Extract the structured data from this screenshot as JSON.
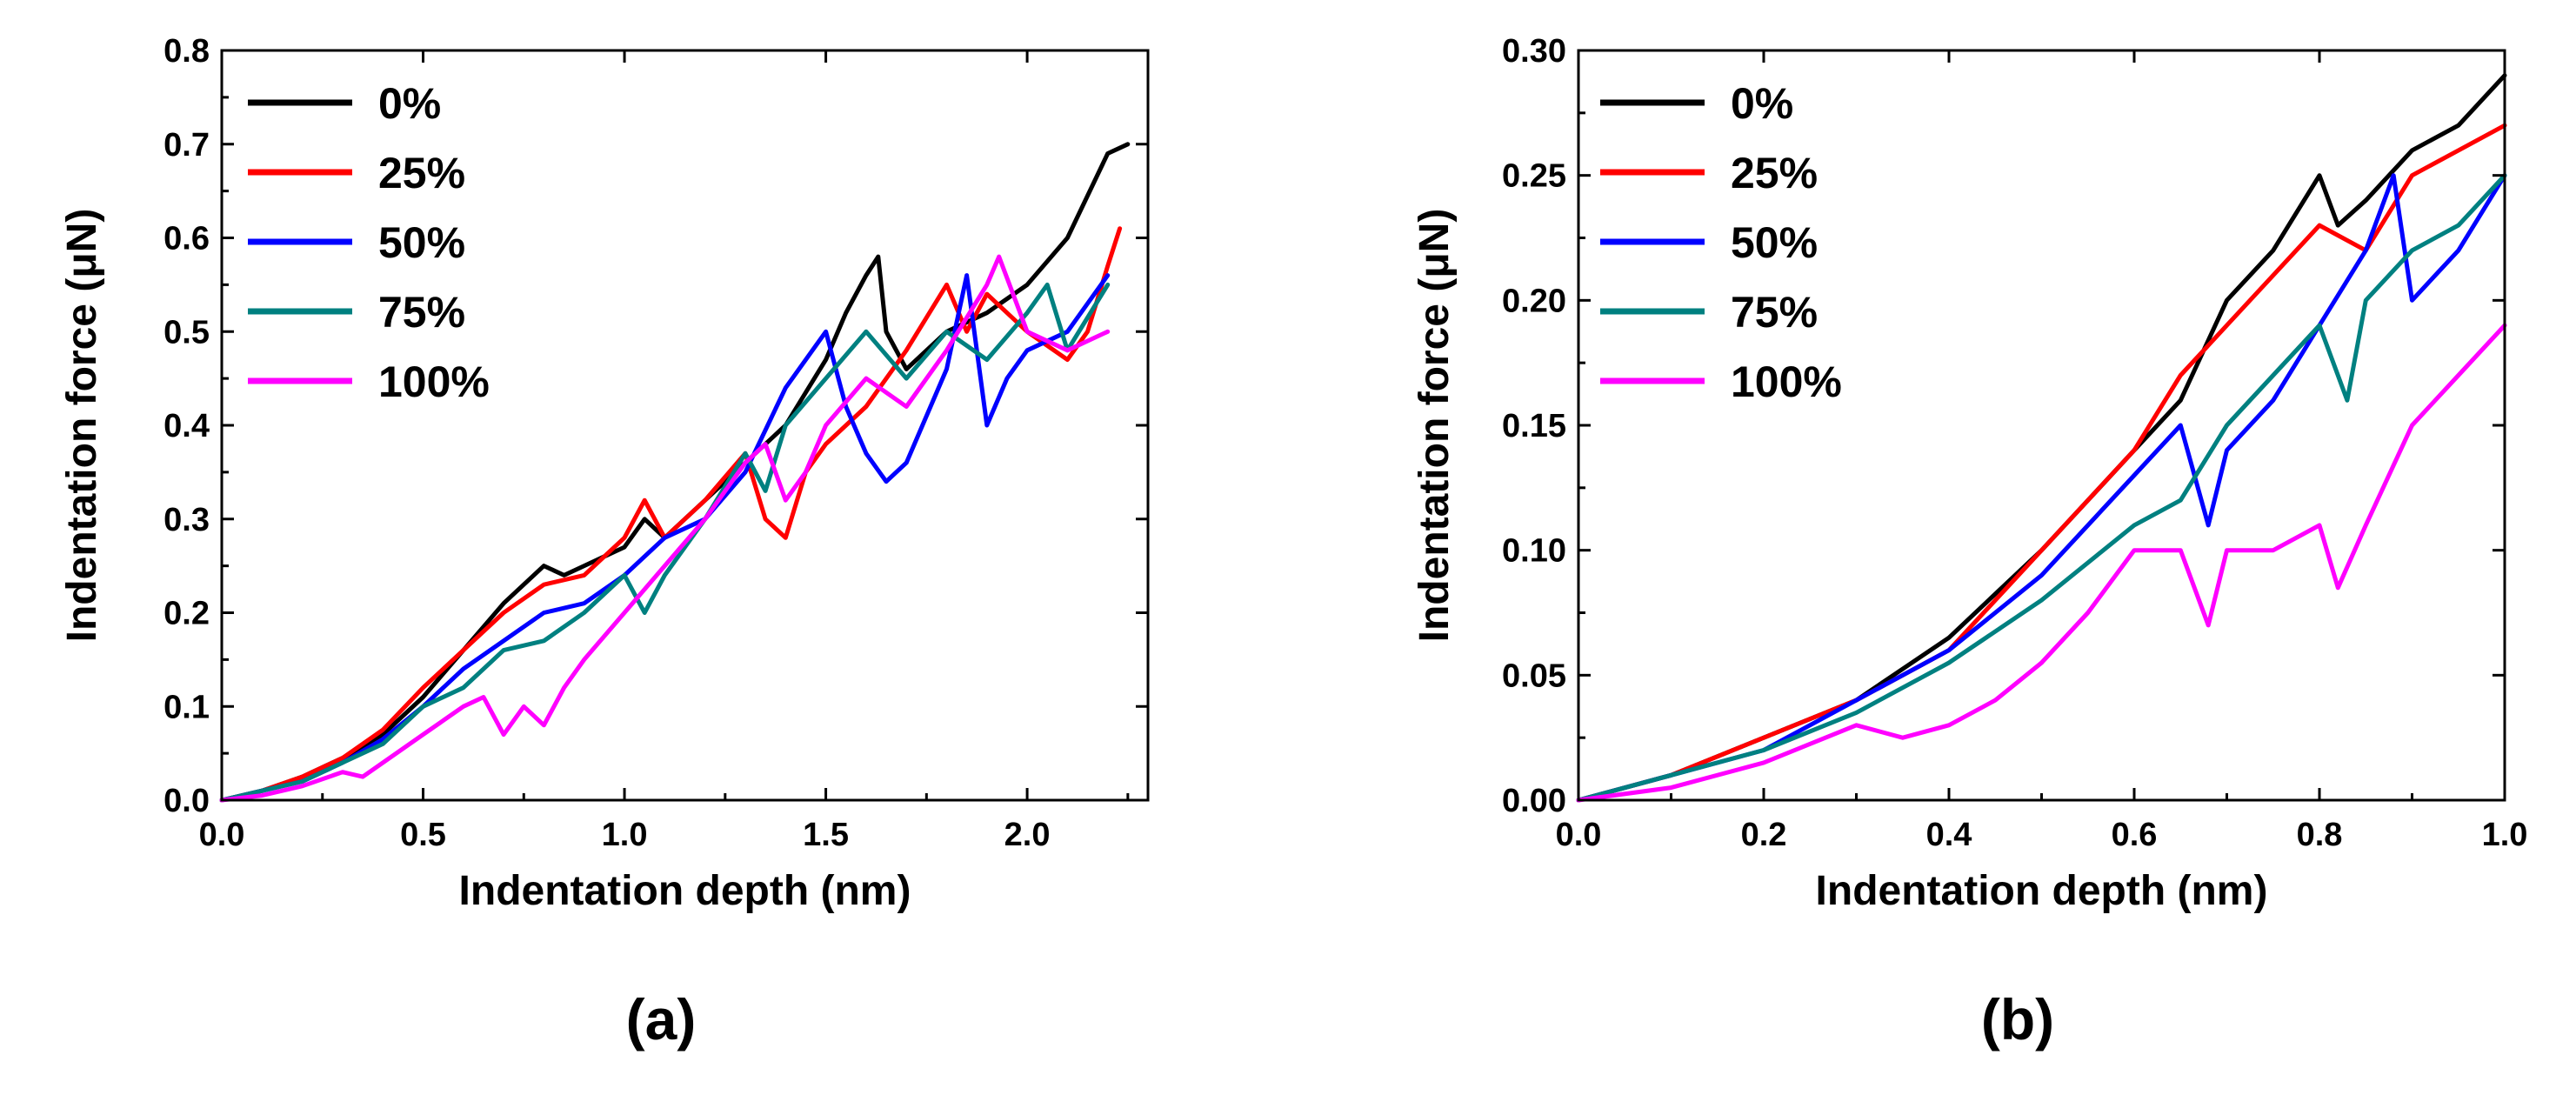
{
  "colors": {
    "0%": "#000000",
    "25%": "#ff0000",
    "50%": "#0000ff",
    "75%": "#008080",
    "100%": "#ff00ff",
    "axis": "#000000",
    "background": "#ffffff"
  },
  "chart_data": [
    {
      "id": "a",
      "panel_label": "(a)",
      "type": "line",
      "xlabel": "Indentation depth (nm)",
      "ylabel": "Indentation force (μN)",
      "xlim": [
        0,
        2.3
      ],
      "ylim": [
        0,
        0.8
      ],
      "xticks": [
        0.0,
        0.5,
        1.0,
        1.5,
        2.0
      ],
      "xtick_labels": [
        "0.0",
        "0.5",
        "1.0",
        "1.5",
        "2.0"
      ],
      "yticks": [
        0.0,
        0.1,
        0.2,
        0.3,
        0.4,
        0.5,
        0.6,
        0.7,
        0.8
      ],
      "ytick_labels": [
        "0.0",
        "0.1",
        "0.2",
        "0.3",
        "0.4",
        "0.5",
        "0.6",
        "0.7",
        "0.8"
      ],
      "grid": false,
      "legend_position": "top-left",
      "series": [
        {
          "name": "0%",
          "x": [
            0,
            0.1,
            0.2,
            0.3,
            0.4,
            0.5,
            0.6,
            0.7,
            0.8,
            0.85,
            0.9,
            0.95,
            1.0,
            1.05,
            1.1,
            1.2,
            1.3,
            1.4,
            1.5,
            1.55,
            1.6,
            1.63,
            1.65,
            1.7,
            1.8,
            1.9,
            2.0,
            2.1,
            2.2,
            2.25
          ],
          "y": [
            0,
            0.01,
            0.025,
            0.045,
            0.07,
            0.11,
            0.16,
            0.21,
            0.25,
            0.24,
            0.25,
            0.26,
            0.27,
            0.3,
            0.28,
            0.32,
            0.36,
            0.4,
            0.47,
            0.52,
            0.56,
            0.58,
            0.5,
            0.46,
            0.5,
            0.52,
            0.55,
            0.6,
            0.69,
            0.7
          ]
        },
        {
          "name": "25%",
          "x": [
            0,
            0.1,
            0.2,
            0.3,
            0.4,
            0.5,
            0.6,
            0.7,
            0.8,
            0.9,
            1.0,
            1.05,
            1.1,
            1.2,
            1.3,
            1.35,
            1.4,
            1.45,
            1.5,
            1.6,
            1.7,
            1.8,
            1.85,
            1.9,
            2.0,
            2.1,
            2.15,
            2.2,
            2.23
          ],
          "y": [
            0,
            0.01,
            0.025,
            0.045,
            0.075,
            0.12,
            0.16,
            0.2,
            0.23,
            0.24,
            0.28,
            0.32,
            0.28,
            0.32,
            0.37,
            0.3,
            0.28,
            0.35,
            0.38,
            0.42,
            0.48,
            0.55,
            0.5,
            0.54,
            0.5,
            0.47,
            0.5,
            0.57,
            0.61
          ]
        },
        {
          "name": "50%",
          "x": [
            0,
            0.1,
            0.2,
            0.3,
            0.4,
            0.5,
            0.6,
            0.7,
            0.8,
            0.9,
            1.0,
            1.1,
            1.2,
            1.3,
            1.4,
            1.5,
            1.55,
            1.6,
            1.65,
            1.7,
            1.8,
            1.85,
            1.9,
            1.95,
            2.0,
            2.1,
            2.2
          ],
          "y": [
            0,
            0.01,
            0.02,
            0.04,
            0.065,
            0.1,
            0.14,
            0.17,
            0.2,
            0.21,
            0.24,
            0.28,
            0.3,
            0.35,
            0.44,
            0.5,
            0.42,
            0.37,
            0.34,
            0.36,
            0.46,
            0.56,
            0.4,
            0.45,
            0.48,
            0.5,
            0.56
          ]
        },
        {
          "name": "75%",
          "x": [
            0,
            0.1,
            0.2,
            0.3,
            0.4,
            0.5,
            0.6,
            0.7,
            0.8,
            0.9,
            1.0,
            1.05,
            1.1,
            1.2,
            1.3,
            1.35,
            1.4,
            1.5,
            1.6,
            1.7,
            1.8,
            1.9,
            2.0,
            2.05,
            2.1,
            2.2
          ],
          "y": [
            0,
            0.01,
            0.02,
            0.04,
            0.06,
            0.1,
            0.12,
            0.16,
            0.17,
            0.2,
            0.24,
            0.2,
            0.24,
            0.3,
            0.37,
            0.33,
            0.4,
            0.45,
            0.5,
            0.45,
            0.5,
            0.47,
            0.52,
            0.55,
            0.48,
            0.55
          ]
        },
        {
          "name": "100%",
          "x": [
            0,
            0.1,
            0.2,
            0.3,
            0.35,
            0.4,
            0.5,
            0.6,
            0.65,
            0.7,
            0.75,
            0.8,
            0.85,
            0.9,
            1.0,
            1.1,
            1.2,
            1.3,
            1.35,
            1.4,
            1.45,
            1.5,
            1.6,
            1.7,
            1.8,
            1.9,
            1.93,
            2.0,
            2.1,
            2.2
          ],
          "y": [
            0,
            0.005,
            0.015,
            0.03,
            0.025,
            0.04,
            0.07,
            0.1,
            0.11,
            0.07,
            0.1,
            0.08,
            0.12,
            0.15,
            0.2,
            0.25,
            0.3,
            0.36,
            0.38,
            0.32,
            0.35,
            0.4,
            0.45,
            0.42,
            0.48,
            0.55,
            0.58,
            0.5,
            0.48,
            0.5
          ]
        }
      ]
    },
    {
      "id": "b",
      "panel_label": "(b)",
      "type": "line",
      "xlabel": "Indentation depth (nm)",
      "ylabel": "Indentation force (μN)",
      "xlim": [
        0,
        1.0
      ],
      "ylim": [
        0,
        0.3
      ],
      "xticks": [
        0.0,
        0.2,
        0.4,
        0.6,
        0.8,
        1.0
      ],
      "xtick_labels": [
        "0.0",
        "0.2",
        "0.4",
        "0.6",
        "0.8",
        "1.0"
      ],
      "yticks": [
        0.0,
        0.05,
        0.1,
        0.15,
        0.2,
        0.25,
        0.3
      ],
      "ytick_labels": [
        "0.00",
        "0.05",
        "0.10",
        "0.15",
        "0.20",
        "0.25",
        "0.30"
      ],
      "grid": false,
      "legend_position": "top-left",
      "series": [
        {
          "name": "0%",
          "x": [
            0,
            0.1,
            0.2,
            0.3,
            0.4,
            0.5,
            0.55,
            0.6,
            0.65,
            0.7,
            0.75,
            0.8,
            0.82,
            0.85,
            0.9,
            0.95,
            1.0
          ],
          "y": [
            0,
            0.01,
            0.025,
            0.04,
            0.065,
            0.1,
            0.12,
            0.14,
            0.16,
            0.2,
            0.22,
            0.25,
            0.23,
            0.24,
            0.26,
            0.27,
            0.29
          ]
        },
        {
          "name": "25%",
          "x": [
            0,
            0.1,
            0.2,
            0.3,
            0.4,
            0.5,
            0.6,
            0.65,
            0.7,
            0.75,
            0.8,
            0.85,
            0.9,
            0.95,
            1.0
          ],
          "y": [
            0,
            0.01,
            0.025,
            0.04,
            0.06,
            0.1,
            0.14,
            0.17,
            0.19,
            0.21,
            0.23,
            0.22,
            0.25,
            0.26,
            0.27
          ]
        },
        {
          "name": "50%",
          "x": [
            0,
            0.1,
            0.2,
            0.3,
            0.4,
            0.5,
            0.6,
            0.65,
            0.68,
            0.7,
            0.75,
            0.8,
            0.85,
            0.88,
            0.9,
            0.95,
            1.0
          ],
          "y": [
            0,
            0.01,
            0.02,
            0.04,
            0.06,
            0.09,
            0.13,
            0.15,
            0.11,
            0.14,
            0.16,
            0.19,
            0.22,
            0.25,
            0.2,
            0.22,
            0.25
          ]
        },
        {
          "name": "75%",
          "x": [
            0,
            0.1,
            0.2,
            0.3,
            0.4,
            0.5,
            0.6,
            0.65,
            0.7,
            0.75,
            0.8,
            0.83,
            0.85,
            0.9,
            0.95,
            1.0
          ],
          "y": [
            0,
            0.01,
            0.02,
            0.035,
            0.055,
            0.08,
            0.11,
            0.12,
            0.15,
            0.17,
            0.19,
            0.16,
            0.2,
            0.22,
            0.23,
            0.25
          ]
        },
        {
          "name": "100%",
          "x": [
            0,
            0.1,
            0.2,
            0.3,
            0.35,
            0.4,
            0.45,
            0.5,
            0.55,
            0.6,
            0.65,
            0.68,
            0.7,
            0.75,
            0.8,
            0.82,
            0.85,
            0.9,
            0.95,
            1.0
          ],
          "y": [
            0,
            0.005,
            0.015,
            0.03,
            0.025,
            0.03,
            0.04,
            0.055,
            0.075,
            0.1,
            0.1,
            0.07,
            0.1,
            0.1,
            0.11,
            0.085,
            0.11,
            0.15,
            0.17,
            0.19
          ]
        }
      ]
    }
  ]
}
